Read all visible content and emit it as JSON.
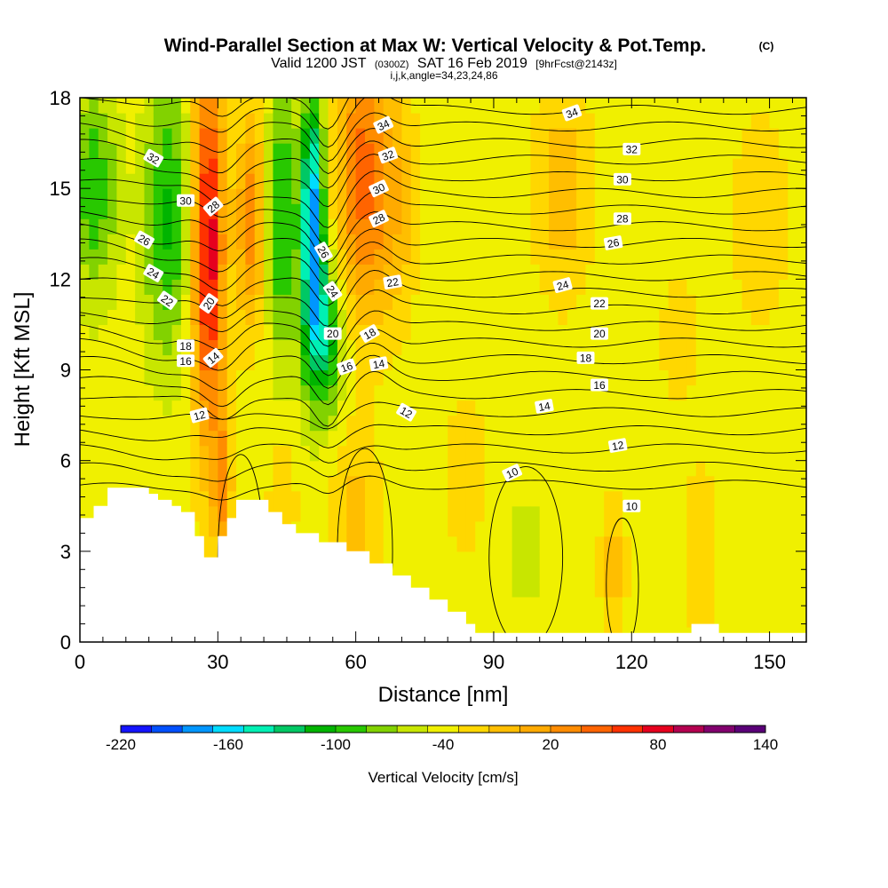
{
  "header": {
    "title": "Wind-Parallel Section at Max W: Vertical Velocity & Pot.Temp.",
    "copyright": "(C)",
    "valid_prefix": "Valid 1200 JST",
    "valid_utc": "(0300Z)",
    "valid_date": "SAT 16 Feb 2019",
    "forecast": "[9hrFcst@2143z]",
    "indices": "i,j,k,angle=34,23,24,86"
  },
  "chart_data": {
    "type": "heatmap",
    "title": "Wind-Parallel Section at Max W: Vertical Velocity & Pot.Temp.",
    "xlabel": "Distance [nm]",
    "ylabel": "Height [Kft MSL]",
    "xlim": [
      0,
      158
    ],
    "ylim": [
      0,
      18
    ],
    "x_ticks": [
      0,
      30,
      60,
      90,
      120,
      150
    ],
    "y_ticks": [
      0,
      3,
      6,
      9,
      12,
      15,
      18
    ],
    "colorbar": {
      "label": "Vertical Velocity [cm/s]",
      "min": -220,
      "max": 140,
      "step": 20,
      "tick_values": [
        -220,
        -160,
        -100,
        -40,
        20,
        80,
        140
      ],
      "colors": [
        "#1414ff",
        "#0050ff",
        "#0096ff",
        "#00dcff",
        "#00f0b4",
        "#00c864",
        "#00b400",
        "#28c800",
        "#82d200",
        "#c8e600",
        "#f0f000",
        "#ffd700",
        "#ffbe00",
        "#ffaa00",
        "#ff8c00",
        "#ff6400",
        "#ff3200",
        "#e6001e",
        "#b40050",
        "#82006e",
        "#5a0078"
      ]
    },
    "velocity_field": {
      "background": -10,
      "features": [
        {
          "x": 28,
          "xw": 3.5,
          "y": 13,
          "yw": 6.5,
          "value": 135
        },
        {
          "x": 31,
          "xw": 2,
          "y": 5,
          "yw": 2.5,
          "value": 60
        },
        {
          "x": 19,
          "xw": 5,
          "y": 14,
          "yw": 4.5,
          "value": -85
        },
        {
          "x": 3,
          "xw": 5,
          "y": 15,
          "yw": 3.5,
          "value": -75
        },
        {
          "x": 44,
          "xw": 3,
          "y": 14,
          "yw": 4.5,
          "value": -85
        },
        {
          "x": 37,
          "xw": 3,
          "y": 14,
          "yw": 3.5,
          "value": 70
        },
        {
          "x": 50.5,
          "xw": 2.5,
          "y": 14,
          "yw": 4,
          "value": -175
        },
        {
          "x": 53,
          "xw": 4,
          "y": 10,
          "yw": 2.5,
          "value": -110
        },
        {
          "x": 61,
          "xw": 5,
          "y": 15.5,
          "yw": 4.5,
          "value": 85
        },
        {
          "x": 68,
          "xw": 5,
          "y": 14.5,
          "yw": 4,
          "value": 40
        },
        {
          "x": 60,
          "xw": 5,
          "y": 4,
          "yw": 3,
          "value": 30
        },
        {
          "x": 44,
          "xw": 3,
          "y": 4.5,
          "yw": 2.5,
          "value": 20
        },
        {
          "x": 105,
          "xw": 6,
          "y": 15,
          "yw": 3.5,
          "value": 35
        },
        {
          "x": 116,
          "xw": 2.5,
          "y": 2.5,
          "yw": 2,
          "value": 40
        },
        {
          "x": 97,
          "xw": 6,
          "y": 3,
          "yw": 2.5,
          "value": -25
        },
        {
          "x": 84,
          "xw": 4,
          "y": 5.5,
          "yw": 2.5,
          "value": 20
        },
        {
          "x": 135,
          "xw": 4,
          "y": 3,
          "yw": 3,
          "value": 15
        },
        {
          "x": 130,
          "xw": 6,
          "y": 10,
          "yw": 3,
          "value": 5
        },
        {
          "x": 148,
          "xw": 8,
          "y": 14,
          "yw": 4,
          "value": 10
        }
      ]
    },
    "terrain": [
      [
        0,
        4.1
      ],
      [
        3,
        4.1
      ],
      [
        3,
        4.5
      ],
      [
        6,
        4.5
      ],
      [
        6,
        5.1
      ],
      [
        15,
        5.1
      ],
      [
        15,
        4.9
      ],
      [
        17,
        4.9
      ],
      [
        17,
        4.7
      ],
      [
        20,
        4.7
      ],
      [
        20,
        4.5
      ],
      [
        22,
        4.5
      ],
      [
        22,
        4.3
      ],
      [
        25,
        4.3
      ],
      [
        25,
        3.5
      ],
      [
        27,
        3.5
      ],
      [
        27,
        2.8
      ],
      [
        30,
        2.8
      ],
      [
        30,
        3.5
      ],
      [
        32,
        3.5
      ],
      [
        32,
        4.1
      ],
      [
        34,
        4.1
      ],
      [
        34,
        4.7
      ],
      [
        41,
        4.7
      ],
      [
        41,
        4.3
      ],
      [
        44,
        4.3
      ],
      [
        44,
        3.9
      ],
      [
        47,
        3.9
      ],
      [
        47,
        3.6
      ],
      [
        52,
        3.6
      ],
      [
        52,
        3.3
      ],
      [
        58,
        3.3
      ],
      [
        58,
        3.0
      ],
      [
        63,
        3.0
      ],
      [
        63,
        2.6
      ],
      [
        68,
        2.6
      ],
      [
        68,
        2.2
      ],
      [
        72,
        2.2
      ],
      [
        72,
        1.8
      ],
      [
        76,
        1.8
      ],
      [
        76,
        1.4
      ],
      [
        80,
        1.4
      ],
      [
        80,
        1.0
      ],
      [
        84,
        1.0
      ],
      [
        84,
        0.6
      ],
      [
        86,
        0.6
      ],
      [
        86,
        0.3
      ],
      [
        133,
        0.3
      ],
      [
        133,
        0.6
      ],
      [
        139,
        0.6
      ],
      [
        139,
        0.3
      ],
      [
        158,
        0.3
      ]
    ],
    "contour_labels": [
      {
        "text": "34",
        "x": 66,
        "y": 17.1,
        "rot": -25
      },
      {
        "text": "34",
        "x": 107,
        "y": 17.5,
        "rot": -20
      },
      {
        "text": "32",
        "x": 16,
        "y": 16.0,
        "rot": 30
      },
      {
        "text": "32",
        "x": 67,
        "y": 16.1,
        "rot": -20
      },
      {
        "text": "32",
        "x": 120,
        "y": 16.3,
        "rot": 0
      },
      {
        "text": "30",
        "x": 23,
        "y": 14.6,
        "rot": 0
      },
      {
        "text": "30",
        "x": 65,
        "y": 15.0,
        "rot": -25
      },
      {
        "text": "30",
        "x": 118,
        "y": 15.3,
        "rot": 0
      },
      {
        "text": "28",
        "x": 29,
        "y": 14.4,
        "rot": -40
      },
      {
        "text": "28",
        "x": 65,
        "y": 14.0,
        "rot": -25
      },
      {
        "text": "28",
        "x": 118,
        "y": 14.0,
        "rot": 0
      },
      {
        "text": "26",
        "x": 14,
        "y": 13.3,
        "rot": 30
      },
      {
        "text": "26",
        "x": 53,
        "y": 12.9,
        "rot": 60
      },
      {
        "text": "26",
        "x": 116,
        "y": 13.2,
        "rot": -10
      },
      {
        "text": "24",
        "x": 16,
        "y": 12.2,
        "rot": 30
      },
      {
        "text": "24",
        "x": 55,
        "y": 11.6,
        "rot": 55
      },
      {
        "text": "24",
        "x": 105,
        "y": 11.8,
        "rot": -15
      },
      {
        "text": "22",
        "x": 19,
        "y": 11.3,
        "rot": 35
      },
      {
        "text": "22",
        "x": 68,
        "y": 11.9,
        "rot": -10
      },
      {
        "text": "22",
        "x": 113,
        "y": 11.2,
        "rot": 0
      },
      {
        "text": "20",
        "x": 28,
        "y": 11.2,
        "rot": -55
      },
      {
        "text": "20",
        "x": 55,
        "y": 10.2,
        "rot": 0
      },
      {
        "text": "20",
        "x": 113,
        "y": 10.2,
        "rot": 0
      },
      {
        "text": "18",
        "x": 23,
        "y": 9.8,
        "rot": 0
      },
      {
        "text": "18",
        "x": 63,
        "y": 10.2,
        "rot": -30
      },
      {
        "text": "18",
        "x": 110,
        "y": 9.4,
        "rot": 0
      },
      {
        "text": "16",
        "x": 23,
        "y": 9.3,
        "rot": 0
      },
      {
        "text": "16",
        "x": 58,
        "y": 9.1,
        "rot": -20
      },
      {
        "text": "16",
        "x": 113,
        "y": 8.5,
        "rot": 0
      },
      {
        "text": "14",
        "x": 29,
        "y": 9.4,
        "rot": -40
      },
      {
        "text": "14",
        "x": 65,
        "y": 9.2,
        "rot": -10
      },
      {
        "text": "14",
        "x": 101,
        "y": 7.8,
        "rot": -10
      },
      {
        "text": "12",
        "x": 26,
        "y": 7.5,
        "rot": -15
      },
      {
        "text": "12",
        "x": 71,
        "y": 7.6,
        "rot": 30
      },
      {
        "text": "12",
        "x": 117,
        "y": 6.5,
        "rot": -10
      },
      {
        "text": "10",
        "x": 94,
        "y": 5.6,
        "rot": -25
      },
      {
        "text": "10",
        "x": 120,
        "y": 4.5,
        "rot": 0
      }
    ]
  }
}
